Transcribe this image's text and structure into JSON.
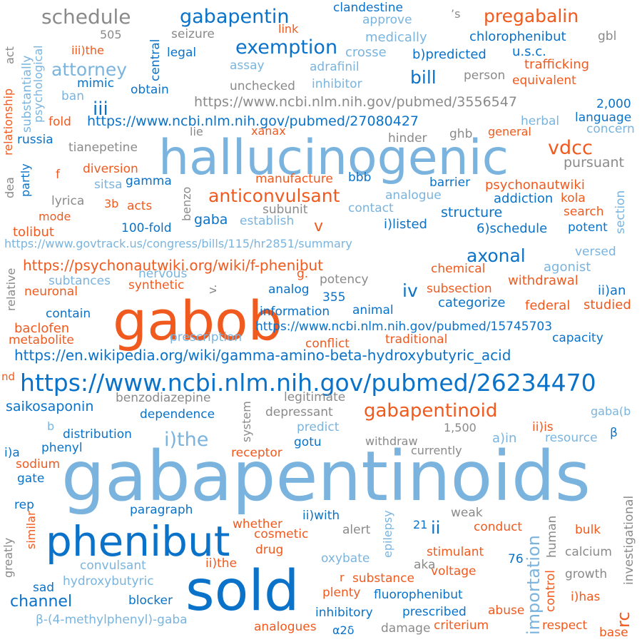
{
  "word_cloud": {
    "words": [
      {
        "id": "w0",
        "text": "gabapentinoids",
        "color": "light-blue"
      },
      {
        "id": "w1",
        "text": "hallucinogenic",
        "color": "light-blue"
      },
      {
        "id": "w2",
        "text": "gabob",
        "color": "orange"
      },
      {
        "id": "w3",
        "text": "sold",
        "color": "dark-blue"
      },
      {
        "id": "w4",
        "text": "phenibut",
        "color": "dark-blue"
      },
      {
        "id": "w5",
        "text": "https://www.ncbi.nlm.nih.gov/pubmed/26234470",
        "color": "dark-blue"
      },
      {
        "id": "w6",
        "text": "https://en.wikipedia.org/wiki/gamma-amino-beta-hydroxybutyric_acid",
        "color": "dark-blue"
      },
      {
        "id": "w7",
        "text": "https://psychonautwiki.org/wiki/f-phenibut",
        "color": "orange"
      },
      {
        "id": "w8",
        "text": "https://www.govtrack.us/congress/bills/115/hr2851/summary",
        "color": "light-blue"
      },
      {
        "id": "w9",
        "text": "https://www.ncbi.nlm.nih.gov/pubmed/3556547",
        "color": "gray"
      },
      {
        "id": "w10",
        "text": "https://www.ncbi.nlm.nih.gov/pubmed/27080427",
        "color": "dark-blue"
      },
      {
        "id": "w11",
        "text": "https://www.ncbi.nlm.nih.gov/pubmed/15745703",
        "color": "dark-blue"
      },
      {
        "id": "w12",
        "text": "schedule",
        "color": "gray"
      },
      {
        "id": "w13",
        "text": "gabapentin",
        "color": "dark-blue"
      },
      {
        "id": "w14",
        "text": "clandestine",
        "color": "dark-blue"
      },
      {
        "id": "w15",
        "text": "approve",
        "color": "light-blue"
      },
      {
        "id": "w16",
        "text": "’s",
        "color": "gray"
      },
      {
        "id": "w17",
        "text": "pregabalin",
        "color": "orange"
      },
      {
        "id": "w18",
        "text": "505",
        "color": "gray"
      },
      {
        "id": "w19",
        "text": "seizure",
        "color": "gray"
      },
      {
        "id": "w20",
        "text": "link",
        "color": "orange"
      },
      {
        "id": "w21",
        "text": "medically",
        "color": "light-blue"
      },
      {
        "id": "w22",
        "text": "chlorophenibut",
        "color": "dark-blue"
      },
      {
        "id": "w23",
        "text": "gbl",
        "color": "gray"
      },
      {
        "id": "w24",
        "text": "exemption",
        "color": "dark-blue"
      },
      {
        "id": "w25",
        "text": "iii)the",
        "color": "orange"
      },
      {
        "id": "w26",
        "text": "legal",
        "color": "dark-blue"
      },
      {
        "id": "w27",
        "text": "crosse",
        "color": "light-blue"
      },
      {
        "id": "w28",
        "text": "b)predicted",
        "color": "dark-blue"
      },
      {
        "id": "w29",
        "text": "u.s.c.",
        "color": "dark-blue"
      },
      {
        "id": "w30",
        "text": "attorney",
        "color": "light-blue"
      },
      {
        "id": "w31",
        "text": "assay",
        "color": "light-blue"
      },
      {
        "id": "w32",
        "text": "adrafinil",
        "color": "light-blue"
      },
      {
        "id": "w33",
        "text": "trafficking",
        "color": "orange"
      },
      {
        "id": "w34",
        "text": "bill",
        "color": "dark-blue"
      },
      {
        "id": "w35",
        "text": "person",
        "color": "gray"
      },
      {
        "id": "w36",
        "text": "equivalent",
        "color": "orange"
      },
      {
        "id": "w37",
        "text": "mimic",
        "color": "dark-blue"
      },
      {
        "id": "w38",
        "text": "unchecked",
        "color": "gray"
      },
      {
        "id": "w39",
        "text": "inhibitor",
        "color": "light-blue"
      },
      {
        "id": "w40",
        "text": "ban",
        "color": "light-blue"
      },
      {
        "id": "w41",
        "text": "obtain",
        "color": "dark-blue"
      },
      {
        "id": "w42",
        "text": "iii",
        "color": "dark-blue"
      },
      {
        "id": "w43",
        "text": "2,000",
        "color": "dark-blue"
      },
      {
        "id": "w44",
        "text": "fold",
        "color": "orange"
      },
      {
        "id": "w45",
        "text": "herbal",
        "color": "light-blue"
      },
      {
        "id": "w46",
        "text": "language",
        "color": "dark-blue"
      },
      {
        "id": "w47",
        "text": "lie",
        "color": "gray"
      },
      {
        "id": "w48",
        "text": "xanax",
        "color": "orange"
      },
      {
        "id": "w49",
        "text": "ghb",
        "color": "gray"
      },
      {
        "id": "w50",
        "text": "general",
        "color": "orange"
      },
      {
        "id": "w51",
        "text": "concern",
        "color": "light-blue"
      },
      {
        "id": "w52",
        "text": "russia",
        "color": "dark-blue"
      },
      {
        "id": "w53",
        "text": "tianepetine",
        "color": "gray"
      },
      {
        "id": "w54",
        "text": "hinder",
        "color": "gray"
      },
      {
        "id": "w55",
        "text": "vdcc",
        "color": "orange"
      },
      {
        "id": "w56",
        "text": "pursuant",
        "color": "gray"
      },
      {
        "id": "w57",
        "text": "f",
        "color": "orange"
      },
      {
        "id": "w58",
        "text": "diversion",
        "color": "orange"
      },
      {
        "id": "w59",
        "text": "manufacture",
        "color": "orange"
      },
      {
        "id": "w60",
        "text": "bbb",
        "color": "dark-blue"
      },
      {
        "id": "w61",
        "text": "barrier",
        "color": "dark-blue"
      },
      {
        "id": "w62",
        "text": "psychonautwiki",
        "color": "orange"
      },
      {
        "id": "w63",
        "text": "sitsa",
        "color": "light-blue"
      },
      {
        "id": "w64",
        "text": "gamma",
        "color": "dark-blue"
      },
      {
        "id": "w65",
        "text": "anticonvulsant",
        "color": "orange"
      },
      {
        "id": "w66",
        "text": "analogue",
        "color": "light-blue"
      },
      {
        "id": "w67",
        "text": "addiction",
        "color": "dark-blue"
      },
      {
        "id": "w68",
        "text": "kola",
        "color": "orange"
      },
      {
        "id": "w69",
        "text": "lyrica",
        "color": "gray"
      },
      {
        "id": "w70",
        "text": "3b",
        "color": "orange"
      },
      {
        "id": "w71",
        "text": "acts",
        "color": "orange"
      },
      {
        "id": "w72",
        "text": "subunit",
        "color": "gray"
      },
      {
        "id": "w73",
        "text": "contact",
        "color": "light-blue"
      },
      {
        "id": "w74",
        "text": "structure",
        "color": "dark-blue"
      },
      {
        "id": "w75",
        "text": "search",
        "color": "orange"
      },
      {
        "id": "w76",
        "text": "mode",
        "color": "orange"
      },
      {
        "id": "w77",
        "text": "gaba",
        "color": "dark-blue"
      },
      {
        "id": "w78",
        "text": "establish",
        "color": "light-blue"
      },
      {
        "id": "w79",
        "text": "v",
        "color": "orange"
      },
      {
        "id": "w80",
        "text": "i)listed",
        "color": "dark-blue"
      },
      {
        "id": "w81",
        "text": "potent",
        "color": "dark-blue"
      },
      {
        "id": "w82",
        "text": "tolibut",
        "color": "orange"
      },
      {
        "id": "w83",
        "text": "100-fold",
        "color": "dark-blue"
      },
      {
        "id": "w84",
        "text": "6)schedule",
        "color": "dark-blue"
      },
      {
        "id": "w85",
        "text": "axonal",
        "color": "dark-blue"
      },
      {
        "id": "w86",
        "text": "versed",
        "color": "light-blue"
      },
      {
        "id": "w87",
        "text": "chemical",
        "color": "orange"
      },
      {
        "id": "w88",
        "text": "agonist",
        "color": "light-blue"
      },
      {
        "id": "w89",
        "text": "nervous",
        "color": "light-blue"
      },
      {
        "id": "w90",
        "text": "g.",
        "color": "orange"
      },
      {
        "id": "w91",
        "text": "potency",
        "color": "gray"
      },
      {
        "id": "w92",
        "text": "subtances",
        "color": "light-blue"
      },
      {
        "id": "w93",
        "text": "synthetic",
        "color": "orange"
      },
      {
        "id": "w94",
        "text": "neuronal",
        "color": "orange"
      },
      {
        "id": "w95",
        "text": "v.",
        "color": "gray"
      },
      {
        "id": "w96",
        "text": "analog",
        "color": "dark-blue"
      },
      {
        "id": "w97",
        "text": "iv",
        "color": "dark-blue"
      },
      {
        "id": "w98",
        "text": "subsection",
        "color": "orange"
      },
      {
        "id": "w99",
        "text": "withdrawal",
        "color": "orange"
      },
      {
        "id": "w100",
        "text": "ii)an",
        "color": "dark-blue"
      },
      {
        "id": "w101",
        "text": "355",
        "color": "dark-blue"
      },
      {
        "id": "w102",
        "text": "categorize",
        "color": "dark-blue"
      },
      {
        "id": "w103",
        "text": "federal",
        "color": "orange"
      },
      {
        "id": "w104",
        "text": "studied",
        "color": "orange"
      },
      {
        "id": "w105",
        "text": "contain",
        "color": "dark-blue"
      },
      {
        "id": "w106",
        "text": "information",
        "color": "dark-blue"
      },
      {
        "id": "w107",
        "text": "animal",
        "color": "dark-blue"
      },
      {
        "id": "w108",
        "text": "baclofen",
        "color": "orange"
      },
      {
        "id": "w109",
        "text": "metabolite",
        "color": "orange"
      },
      {
        "id": "w110",
        "text": "prescription",
        "color": "light-blue"
      },
      {
        "id": "w111",
        "text": "conflict",
        "color": "orange"
      },
      {
        "id": "w112",
        "text": "traditional",
        "color": "orange"
      },
      {
        "id": "w113",
        "text": "capacity",
        "color": "dark-blue"
      },
      {
        "id": "w114",
        "text": "nd",
        "color": "orange"
      },
      {
        "id": "w115",
        "text": "benzodiazepine",
        "color": "gray"
      },
      {
        "id": "w116",
        "text": "legitimate",
        "color": "gray"
      },
      {
        "id": "w117",
        "text": "saikosaponin",
        "color": "dark-blue"
      },
      {
        "id": "w118",
        "text": "gabapentinoid",
        "color": "orange"
      },
      {
        "id": "w119",
        "text": "dependence",
        "color": "dark-blue"
      },
      {
        "id": "w120",
        "text": "depressant",
        "color": "gray"
      },
      {
        "id": "w121",
        "text": "gaba(b",
        "color": "light-blue"
      },
      {
        "id": "w122",
        "text": "b",
        "color": "light-blue"
      },
      {
        "id": "w123",
        "text": "predict",
        "color": "light-blue"
      },
      {
        "id": "w124",
        "text": "1,500",
        "color": "gray"
      },
      {
        "id": "w125",
        "text": "distribution",
        "color": "dark-blue"
      },
      {
        "id": "w126",
        "text": "i)the",
        "color": "light-blue"
      },
      {
        "id": "w127",
        "text": "withdraw",
        "color": "gray"
      },
      {
        "id": "w128",
        "text": "a)in",
        "color": "light-blue"
      },
      {
        "id": "w129",
        "text": "ii)is",
        "color": "orange"
      },
      {
        "id": "w130",
        "text": "resource",
        "color": "light-blue"
      },
      {
        "id": "w131",
        "text": "β",
        "color": "dark-blue"
      },
      {
        "id": "w132",
        "text": "i)a",
        "color": "dark-blue"
      },
      {
        "id": "w133",
        "text": "phenyl",
        "color": "dark-blue"
      },
      {
        "id": "w134",
        "text": "gotu",
        "color": "dark-blue"
      },
      {
        "id": "w135",
        "text": "receptor",
        "color": "orange"
      },
      {
        "id": "w136",
        "text": "currently",
        "color": "gray"
      },
      {
        "id": "w137",
        "text": "sodium",
        "color": "orange"
      },
      {
        "id": "w138",
        "text": "gate",
        "color": "dark-blue"
      },
      {
        "id": "w139",
        "text": "rep",
        "color": "dark-blue"
      },
      {
        "id": "w140",
        "text": "paragraph",
        "color": "dark-blue"
      },
      {
        "id": "w141",
        "text": "weak",
        "color": "gray"
      },
      {
        "id": "w142",
        "text": "whether",
        "color": "orange"
      },
      {
        "id": "w143",
        "text": "ii)with",
        "color": "dark-blue"
      },
      {
        "id": "w144",
        "text": "alert",
        "color": "gray"
      },
      {
        "id": "w145",
        "text": "21",
        "color": "dark-blue"
      },
      {
        "id": "w146",
        "text": "ii",
        "color": "dark-blue"
      },
      {
        "id": "w147",
        "text": "conduct",
        "color": "orange"
      },
      {
        "id": "w148",
        "text": "bulk",
        "color": "orange"
      },
      {
        "id": "w149",
        "text": "cosmetic",
        "color": "orange"
      },
      {
        "id": "w150",
        "text": "drug",
        "color": "orange"
      },
      {
        "id": "w151",
        "text": "oxybate",
        "color": "light-blue"
      },
      {
        "id": "w152",
        "text": "stimulant",
        "color": "orange"
      },
      {
        "id": "w153",
        "text": "calcium",
        "color": "gray"
      },
      {
        "id": "w154",
        "text": "convulsant",
        "color": "light-blue"
      },
      {
        "id": "w155",
        "text": "ii)the",
        "color": "orange"
      },
      {
        "id": "w156",
        "text": "aka",
        "color": "gray"
      },
      {
        "id": "w157",
        "text": "76",
        "color": "dark-blue"
      },
      {
        "id": "w158",
        "text": "r",
        "color": "orange"
      },
      {
        "id": "w159",
        "text": "substance",
        "color": "orange"
      },
      {
        "id": "w160",
        "text": "voltage",
        "color": "orange"
      },
      {
        "id": "w161",
        "text": "growth",
        "color": "gray"
      },
      {
        "id": "w162",
        "text": "hydroxybutyric",
        "color": "light-blue"
      },
      {
        "id": "w163",
        "text": "sad",
        "color": "dark-blue"
      },
      {
        "id": "w164",
        "text": "channel",
        "color": "dark-blue"
      },
      {
        "id": "w165",
        "text": "plenty",
        "color": "orange"
      },
      {
        "id": "w166",
        "text": "fluorophenibut",
        "color": "dark-blue"
      },
      {
        "id": "w167",
        "text": "i)has",
        "color": "orange"
      },
      {
        "id": "w168",
        "text": "blocker",
        "color": "dark-blue"
      },
      {
        "id": "w169",
        "text": "prescribed",
        "color": "dark-blue"
      },
      {
        "id": "w170",
        "text": "abuse",
        "color": "orange"
      },
      {
        "id": "w171",
        "text": "β-(4-methylphenyl)-gaba",
        "color": "light-blue"
      },
      {
        "id": "w172",
        "text": "inhibitory",
        "color": "dark-blue"
      },
      {
        "id": "w173",
        "text": "criterium",
        "color": "orange"
      },
      {
        "id": "w174",
        "text": "respect",
        "color": "orange"
      },
      {
        "id": "w175",
        "text": "analogues",
        "color": "orange"
      },
      {
        "id": "w176",
        "text": "α2δ",
        "color": "dark-blue"
      },
      {
        "id": "w177",
        "text": "damage",
        "color": "gray"
      },
      {
        "id": "w178",
        "text": "base",
        "color": "orange"
      },
      {
        "id": "w179",
        "text": "rc",
        "color": "orange"
      },
      {
        "id": "w180",
        "text": "act",
        "color": "gray"
      },
      {
        "id": "w181",
        "text": "relationship",
        "color": "orange"
      },
      {
        "id": "w182",
        "text": "substantially",
        "color": "light-blue"
      },
      {
        "id": "w183",
        "text": "psychological",
        "color": "light-blue"
      },
      {
        "id": "w184",
        "text": "central",
        "color": "dark-blue"
      },
      {
        "id": "w185",
        "text": "dea",
        "color": "gray"
      },
      {
        "id": "w186",
        "text": "partly",
        "color": "dark-blue"
      },
      {
        "id": "w187",
        "text": "benzo",
        "color": "gray"
      },
      {
        "id": "w188",
        "text": "section",
        "color": "light-blue"
      },
      {
        "id": "w189",
        "text": "relative",
        "color": "gray"
      },
      {
        "id": "w190",
        "text": "system",
        "color": "gray"
      },
      {
        "id": "w191",
        "text": "epilepsy",
        "color": "light-blue"
      },
      {
        "id": "w192",
        "text": "importation",
        "color": "light-blue"
      },
      {
        "id": "w193",
        "text": "human",
        "color": "gray"
      },
      {
        "id": "w194",
        "text": "control",
        "color": "orange"
      },
      {
        "id": "w195",
        "text": "investigational",
        "color": "gray"
      },
      {
        "id": "w196",
        "text": "greatly",
        "color": "gray"
      },
      {
        "id": "w197",
        "text": "similar",
        "color": "orange"
      }
    ]
  }
}
